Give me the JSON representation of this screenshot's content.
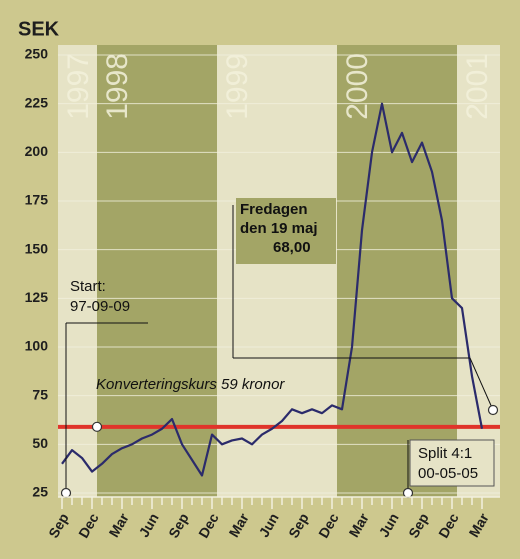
{
  "chart_data": {
    "type": "line",
    "y_axis_label": "SEK",
    "categories": [
      "Sep",
      null,
      null,
      "Dec",
      null,
      null,
      "Mar",
      null,
      null,
      "Jun",
      null,
      null,
      "Sep",
      null,
      null,
      "Dec",
      null,
      null,
      "Mar",
      null,
      null,
      "Jun",
      null,
      null,
      "Sep",
      null,
      null,
      "Dec",
      null,
      null,
      "Mar",
      null,
      null,
      "Jun",
      null,
      null,
      "Sep",
      null,
      null,
      "Dec",
      null,
      null,
      "Mar"
    ],
    "values": [
      40,
      47,
      43,
      36,
      40,
      45,
      48,
      50,
      53,
      55,
      58,
      63,
      50,
      42,
      34,
      55,
      50,
      52,
      53,
      50,
      55,
      58,
      62,
      68,
      66,
      68,
      66,
      70,
      68,
      100,
      160,
      200,
      225,
      200,
      210,
      195,
      205,
      190,
      165,
      125,
      120,
      85,
      58
    ],
    "color": "#2b2b6b",
    "ylim": [
      25,
      250
    ],
    "yticks": [
      25,
      50,
      75,
      100,
      125,
      150,
      175,
      200,
      225,
      250
    ],
    "grid": true,
    "year_labels": [
      "1997",
      "1998",
      "1999",
      "2000",
      "2001"
    ],
    "reference_line": {
      "value": 59,
      "label": "Konverteringskurs 59 kronor",
      "color": "#e0342a"
    },
    "start_note": [
      "Start:",
      "97-09-09"
    ],
    "may_note": [
      "Fredagen",
      "den 19 maj",
      "68,00"
    ],
    "split_note": [
      "Split 4:1",
      "00-05-05"
    ]
  }
}
